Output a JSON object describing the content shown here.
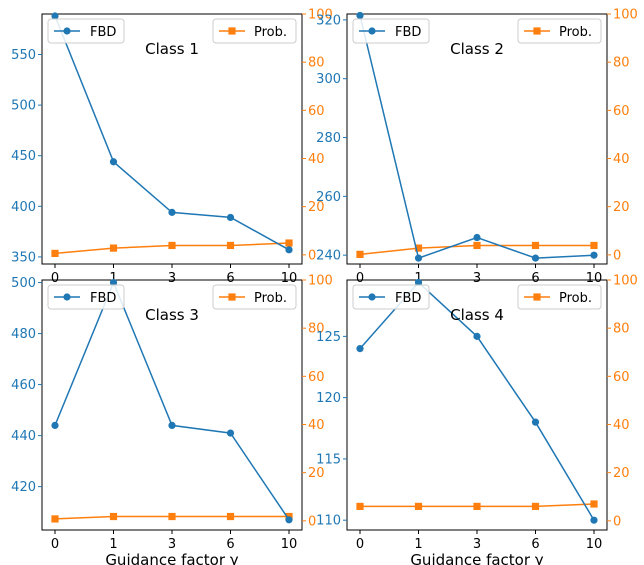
{
  "chart_data": [
    {
      "type": "line",
      "title": "Class 1",
      "xlabel": "",
      "categories": [
        "0",
        "1",
        "3",
        "6",
        "10"
      ],
      "left_axis": {
        "ticks": [
          350,
          400,
          450,
          500,
          550
        ],
        "range": [
          343,
          590
        ]
      },
      "right_axis": {
        "ticks": [
          0,
          20,
          40,
          60,
          80,
          100
        ],
        "range": [
          -3.8,
          100
        ]
      },
      "series": [
        {
          "name": "FBD",
          "axis": "left",
          "color": "#1f77b4",
          "marker": "circle",
          "values": [
            588,
            444,
            394,
            389,
            357
          ]
        },
        {
          "name": "Prob.",
          "axis": "right",
          "color": "#ff7f0e",
          "marker": "square",
          "values": [
            0.6,
            2.8,
            3.9,
            3.9,
            4.9
          ]
        }
      ],
      "legend": [
        "top-left",
        "top-right"
      ],
      "grid": false
    },
    {
      "type": "line",
      "title": "Class 2",
      "xlabel": "",
      "categories": [
        "0",
        "1",
        "3",
        "6",
        "10"
      ],
      "left_axis": {
        "ticks": [
          240,
          260,
          280,
          300,
          320
        ],
        "range": [
          237,
          322
        ]
      },
      "right_axis": {
        "ticks": [
          0,
          20,
          40,
          60,
          80,
          100
        ],
        "range": [
          -3.8,
          100
        ]
      },
      "series": [
        {
          "name": "FBD",
          "axis": "left",
          "color": "#1f77b4",
          "marker": "circle",
          "values": [
            321.5,
            239,
            246,
            239,
            240
          ]
        },
        {
          "name": "Prob.",
          "axis": "right",
          "color": "#ff7f0e",
          "marker": "square",
          "values": [
            0.2,
            2.8,
            3.9,
            3.9,
            3.9
          ]
        }
      ],
      "legend": [
        "top-left",
        "top-right"
      ],
      "grid": false
    },
    {
      "type": "line",
      "title": "Class 3",
      "xlabel": "Guidance factor γ",
      "categories": [
        "0",
        "1",
        "3",
        "6",
        "10"
      ],
      "left_axis": {
        "ticks": [
          420,
          440,
          460,
          480,
          500
        ],
        "range": [
          403,
          501
        ]
      },
      "right_axis": {
        "ticks": [
          0,
          20,
          40,
          60,
          80,
          100
        ],
        "range": [
          -3.8,
          100
        ]
      },
      "series": [
        {
          "name": "FBD",
          "axis": "left",
          "color": "#1f77b4",
          "marker": "circle",
          "values": [
            444,
            500,
            444,
            441,
            407
          ]
        },
        {
          "name": "Prob.",
          "axis": "right",
          "color": "#ff7f0e",
          "marker": "square",
          "values": [
            0.8,
            1.8,
            1.8,
            1.8,
            1.8
          ]
        }
      ],
      "legend": [
        "top-left",
        "top-right"
      ],
      "grid": false
    },
    {
      "type": "line",
      "title": "Class 4",
      "xlabel": "Guidance factor γ",
      "categories": [
        "0",
        "1",
        "3",
        "6",
        "10"
      ],
      "left_axis": {
        "ticks": [
          110,
          115,
          120,
          125
        ],
        "range": [
          109.2,
          129.6
        ]
      },
      "right_axis": {
        "ticks": [
          0,
          20,
          40,
          60,
          80,
          100
        ],
        "range": [
          -3.8,
          100
        ]
      },
      "series": [
        {
          "name": "FBD",
          "axis": "left",
          "color": "#1f77b4",
          "marker": "circle",
          "values": [
            124,
            129.4,
            125,
            118,
            110
          ]
        },
        {
          "name": "Prob.",
          "axis": "right",
          "color": "#ff7f0e",
          "marker": "square",
          "values": [
            6,
            6,
            6,
            6,
            7
          ]
        }
      ],
      "legend": [
        "top-left",
        "top-right"
      ],
      "grid": false
    }
  ]
}
